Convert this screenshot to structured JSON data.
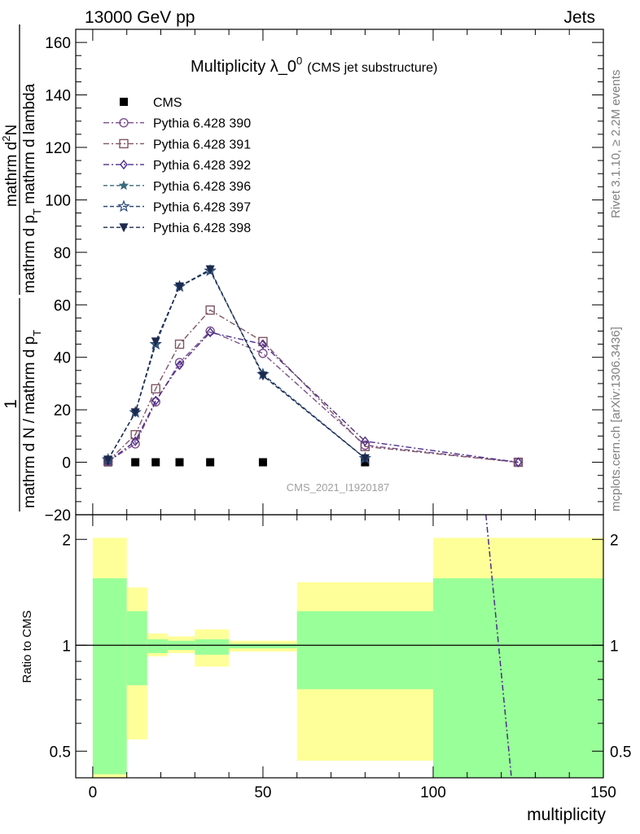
{
  "header": {
    "left": "13000 GeV pp",
    "right": "Jets"
  },
  "side_labels": {
    "rivet": "Rivet 3.1.10, ≥ 2.2M events",
    "mcplots": "mcplots.cern.ch [arXiv:1306.3436]"
  },
  "watermark": "CMS_2021_I1920187",
  "chart_data": [
    {
      "type": "line",
      "panel": "main",
      "title": "Multiplicity λ_0^0 (CMS jet substructure)",
      "title_main": "Multiplicity λ_0",
      "title_sup": "0",
      "title_small": "(CMS jet substructure)",
      "ylabel_fraction_top": "mathrm d",
      "ylabel_fraction_top_sup": "2",
      "ylabel_fraction_top_rest": "N",
      "ylabel_fraction_bottom": "mathrm d p",
      "ylabel_fraction_bottom_sub": "T",
      "ylabel_fraction_bottom_rest": " mathrm d lambda",
      "ylabel_prefix_num": "1",
      "ylabel_prefix_den": "mathrm d N / mathrm d p",
      "ylabel_prefix_den_sub": "T",
      "ylim": [
        -20,
        165
      ],
      "xlim": [
        -5,
        150
      ],
      "yticks": [
        -20,
        0,
        20,
        40,
        60,
        80,
        100,
        120,
        140,
        160
      ],
      "legend_position": "top-left",
      "x": [
        4.5,
        12.5,
        18.5,
        25.5,
        34.5,
        50,
        80,
        125
      ],
      "series": [
        {
          "name": "CMS",
          "style": "data",
          "color": "#000000",
          "marker": "square-filled",
          "values": [
            0,
            0,
            0,
            0,
            0,
            0,
            0,
            null
          ]
        },
        {
          "name": "Pythia 6.428 390",
          "style": "dashdot",
          "color": "#7b4f8c",
          "marker": "circle-open",
          "values": [
            0.3,
            7,
            23,
            38,
            50,
            41.5,
            6.5,
            0
          ]
        },
        {
          "name": "Pythia 6.428 391",
          "style": "dashdot",
          "color": "#7e5566",
          "marker": "square-open",
          "values": [
            0.4,
            10.5,
            28,
            45,
            58,
            46,
            6,
            0
          ]
        },
        {
          "name": "Pythia 6.428 392",
          "style": "dashdot",
          "color": "#4d2e8a",
          "marker": "diamond-open",
          "values": [
            0.3,
            8,
            23.5,
            37,
            49.5,
            45,
            8,
            0
          ]
        },
        {
          "name": "Pythia 6.428 396",
          "style": "dashed",
          "color": "#3a6a7a",
          "marker": "star-filled",
          "values": [
            1,
            19,
            45,
            67,
            73,
            33.5,
            1.5,
            null
          ]
        },
        {
          "name": "Pythia 6.428 397",
          "style": "dashed",
          "color": "#2e4a7c",
          "marker": "star-open",
          "values": [
            1,
            19,
            45,
            67,
            73,
            33.5,
            1.5,
            null
          ]
        },
        {
          "name": "Pythia 6.428 398",
          "style": "dashed",
          "color": "#1c2a4e",
          "marker": "triangle-down-filled",
          "values": [
            1,
            19,
            46,
            67,
            73.5,
            33,
            1.5,
            null
          ]
        }
      ]
    },
    {
      "type": "line",
      "panel": "ratio",
      "ylabel": "Ratio to CMS",
      "xlabel": "multiplicity",
      "ylim": [
        0.42,
        2.35
      ],
      "yscale": "log",
      "yticks": [
        0.5,
        1,
        2
      ],
      "xlim": [
        -5,
        150
      ],
      "xticks": [
        0,
        50,
        100,
        150
      ],
      "bands": [
        {
          "x0": 0,
          "x1": 10,
          "green": [
            0.43,
            1.55
          ],
          "yellow": [
            0.395,
            2.02
          ]
        },
        {
          "x0": 10,
          "x1": 16,
          "green": [
            0.77,
            1.25
          ],
          "yellow": [
            0.54,
            1.46
          ]
        },
        {
          "x0": 16,
          "x1": 22,
          "green": [
            0.95,
            1.04
          ],
          "yellow": [
            0.93,
            1.08
          ]
        },
        {
          "x0": 22,
          "x1": 30,
          "green": [
            0.97,
            1.03
          ],
          "yellow": [
            0.95,
            1.06
          ]
        },
        {
          "x0": 30,
          "x1": 40,
          "green": [
            0.94,
            1.04
          ],
          "yellow": [
            0.87,
            1.11
          ]
        },
        {
          "x0": 40,
          "x1": 60,
          "green": [
            0.98,
            1.01
          ],
          "yellow": [
            0.96,
            1.03
          ]
        },
        {
          "x0": 60,
          "x1": 100,
          "green": [
            0.75,
            1.25
          ],
          "yellow": [
            0.47,
            1.51
          ]
        },
        {
          "x0": 100,
          "x1": 150,
          "green": [
            0.4,
            1.55
          ],
          "yellow": [
            0.4,
            2.02
          ]
        }
      ],
      "ratio_line": {
        "name": "Pythia 6.428 392",
        "color": "#4d2e8a",
        "x": [
          115.5,
          123
        ],
        "values": [
          2.35,
          0.42
        ]
      }
    }
  ]
}
